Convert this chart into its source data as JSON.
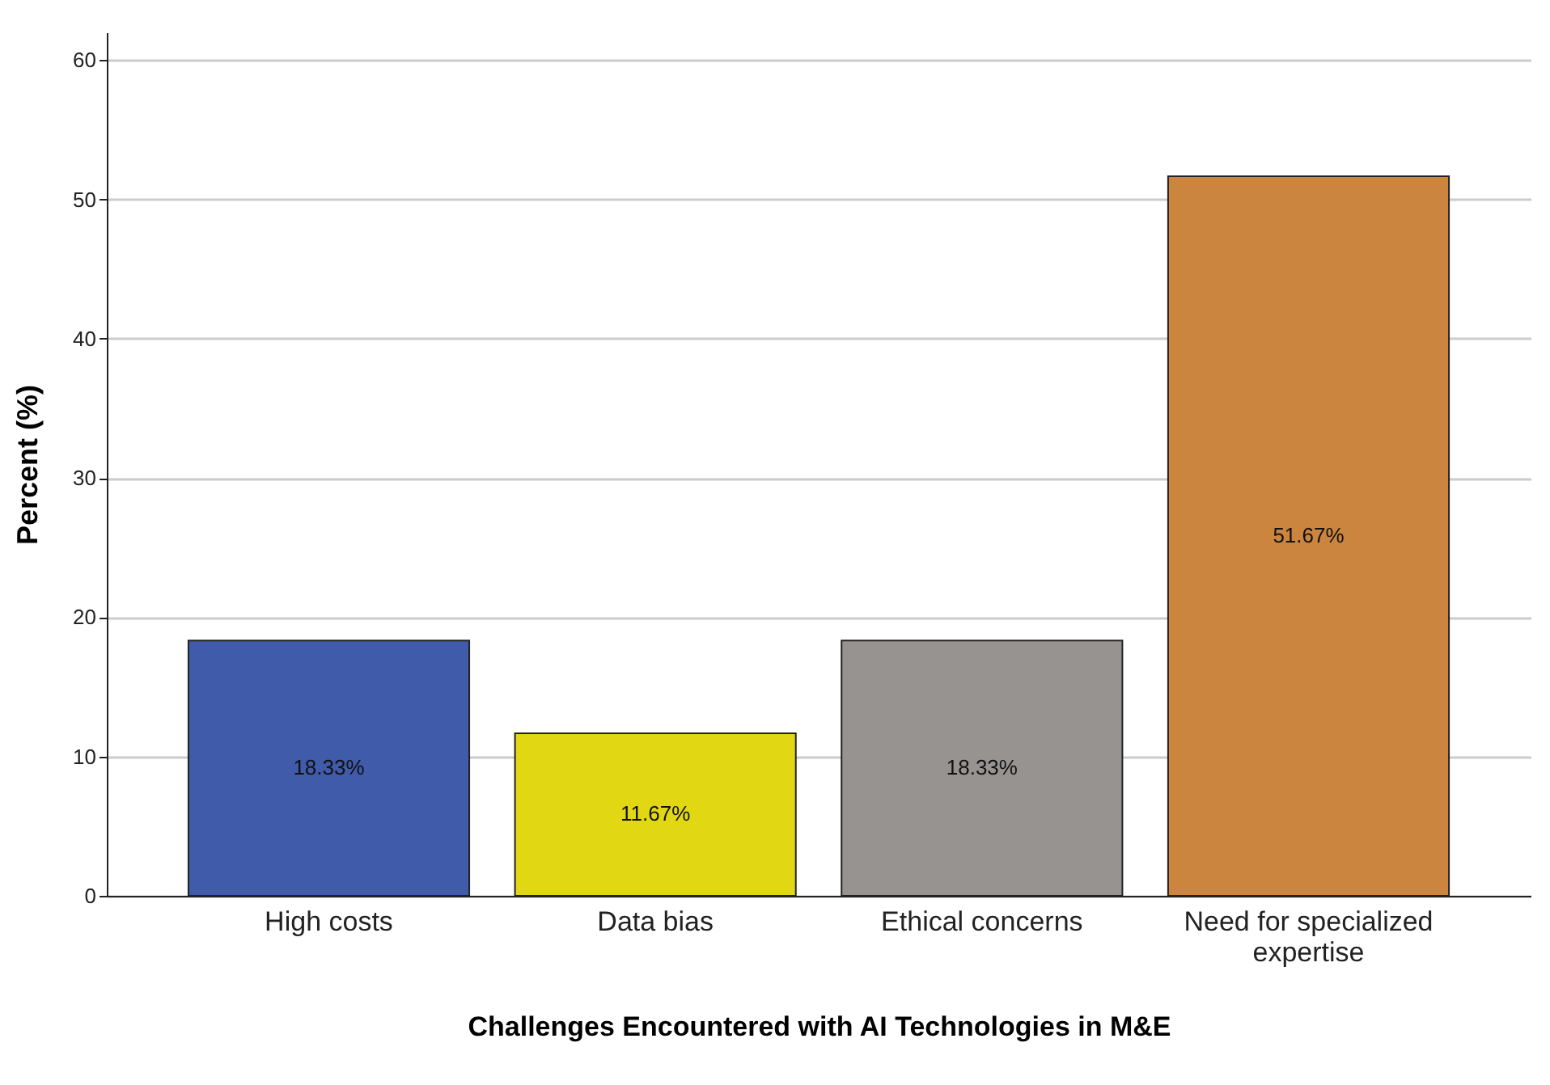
{
  "chart_data": {
    "type": "bar",
    "xlabel": "Challenges Encountered with AI Technologies in M&E",
    "ylabel": "Percent (%)",
    "categories": [
      "High costs",
      "Data bias",
      "Ethical concerns",
      "Need for specialized expertise"
    ],
    "values": [
      18.33,
      11.67,
      18.33,
      51.67
    ],
    "colors": [
      "#3f5ba9",
      "#e2d713",
      "#979391",
      "#cb853e"
    ],
    "value_labels": [
      "18.33%",
      "11.67%",
      "18.33%",
      "51.67%"
    ],
    "ylim": [
      0,
      62
    ],
    "yticks": [
      0,
      10,
      20,
      30,
      40,
      50,
      60
    ],
    "grid": "y"
  }
}
